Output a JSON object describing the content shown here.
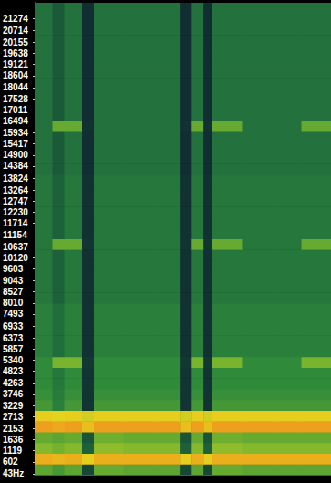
{
  "chart_data": {
    "type": "heatmap",
    "tick_labels": "y",
    "grid": false,
    "xlim": [
      0,
      100
    ],
    "ylim": [
      0,
      22000
    ],
    "yticks": [
      21274,
      20714,
      20155,
      19638,
      19121,
      18604,
      18044,
      17528,
      17011,
      16494,
      15934,
      15417,
      14900,
      14384,
      13824,
      13264,
      12747,
      12230,
      11714,
      11154,
      10637,
      10120,
      9603,
      9043,
      8527,
      8010,
      7493,
      6933,
      6373,
      5857,
      5340,
      4823,
      4263,
      3746,
      3229,
      2713,
      2153,
      1636,
      1119,
      602,
      {
        "value": 43,
        "label": "43Hz"
      }
    ],
    "color_range": [
      0,
      100
    ],
    "x_bins": [
      0,
      6,
      10,
      16,
      20,
      30,
      40,
      49,
      53,
      57,
      60,
      70,
      80,
      90,
      100
    ],
    "y_bins": [
      0,
      500,
      1000,
      1500,
      2000,
      2500,
      3000,
      3500,
      4000,
      4500,
      5000,
      5500,
      6000,
      6500,
      7000,
      7500,
      8000,
      8500,
      9000,
      9500,
      10000,
      10500,
      11000,
      11500,
      12000,
      12500,
      13000,
      13500,
      14000,
      14500,
      15000,
      15500,
      16000,
      16500,
      17000,
      17500,
      18000,
      18500,
      19000,
      19500,
      20000,
      20500,
      21000,
      21500,
      22000
    ],
    "cells": [
      [
        60,
        55,
        60,
        20,
        62,
        60,
        60,
        20,
        60,
        20,
        62,
        60,
        60,
        60
      ],
      [
        92,
        90,
        92,
        85,
        92,
        92,
        92,
        85,
        92,
        85,
        92,
        92,
        92,
        92
      ],
      [
        68,
        65,
        68,
        30,
        70,
        68,
        68,
        30,
        68,
        30,
        70,
        68,
        68,
        68
      ],
      [
        62,
        60,
        62,
        25,
        64,
        62,
        62,
        25,
        62,
        25,
        64,
        62,
        62,
        62
      ],
      [
        95,
        93,
        95,
        88,
        95,
        95,
        95,
        88,
        95,
        88,
        95,
        95,
        95,
        95
      ],
      [
        85,
        83,
        85,
        80,
        85,
        85,
        85,
        80,
        85,
        80,
        85,
        85,
        85,
        85
      ],
      [
        55,
        45,
        55,
        10,
        55,
        55,
        55,
        10,
        55,
        10,
        55,
        55,
        55,
        55
      ],
      [
        52,
        42,
        52,
        10,
        52,
        52,
        52,
        10,
        52,
        10,
        52,
        52,
        52,
        52
      ],
      [
        50,
        40,
        50,
        10,
        50,
        50,
        50,
        10,
        50,
        10,
        50,
        50,
        50,
        50
      ],
      [
        50,
        40,
        50,
        10,
        50,
        50,
        50,
        10,
        50,
        10,
        50,
        50,
        50,
        50
      ],
      [
        50,
        66,
        66,
        12,
        50,
        50,
        50,
        12,
        66,
        12,
        66,
        50,
        50,
        66
      ],
      [
        45,
        35,
        45,
        8,
        45,
        45,
        45,
        8,
        45,
        8,
        45,
        45,
        45,
        45
      ],
      [
        45,
        35,
        45,
        8,
        45,
        45,
        45,
        8,
        45,
        8,
        45,
        45,
        45,
        45
      ],
      [
        45,
        35,
        45,
        8,
        45,
        45,
        45,
        8,
        45,
        8,
        45,
        45,
        45,
        45
      ],
      [
        45,
        35,
        45,
        8,
        45,
        45,
        45,
        8,
        45,
        8,
        45,
        45,
        45,
        45
      ],
      [
        45,
        35,
        45,
        8,
        45,
        45,
        45,
        8,
        45,
        8,
        45,
        45,
        45,
        45
      ],
      [
        40,
        30,
        40,
        8,
        40,
        40,
        40,
        8,
        40,
        8,
        40,
        40,
        40,
        40
      ],
      [
        40,
        30,
        40,
        8,
        40,
        40,
        40,
        8,
        40,
        8,
        40,
        40,
        40,
        40
      ],
      [
        40,
        30,
        40,
        8,
        40,
        40,
        40,
        8,
        40,
        8,
        40,
        40,
        40,
        40
      ],
      [
        40,
        30,
        40,
        8,
        40,
        40,
        40,
        8,
        40,
        8,
        40,
        40,
        40,
        40
      ],
      [
        40,
        30,
        40,
        8,
        40,
        40,
        40,
        8,
        40,
        8,
        40,
        40,
        40,
        40
      ],
      [
        40,
        62,
        62,
        10,
        40,
        40,
        40,
        10,
        62,
        10,
        62,
        40,
        40,
        62
      ],
      [
        40,
        30,
        40,
        8,
        40,
        40,
        40,
        8,
        40,
        8,
        40,
        40,
        40,
        40
      ],
      [
        40,
        30,
        40,
        8,
        40,
        40,
        40,
        8,
        40,
        8,
        40,
        40,
        40,
        40
      ],
      [
        40,
        30,
        40,
        8,
        40,
        40,
        40,
        8,
        40,
        8,
        40,
        40,
        40,
        40
      ],
      [
        40,
        30,
        40,
        8,
        40,
        40,
        40,
        8,
        40,
        8,
        40,
        40,
        40,
        40
      ],
      [
        40,
        30,
        40,
        8,
        40,
        40,
        40,
        8,
        40,
        8,
        40,
        40,
        40,
        40
      ],
      [
        40,
        30,
        40,
        8,
        40,
        40,
        40,
        8,
        40,
        8,
        40,
        40,
        40,
        40
      ],
      [
        37,
        27,
        37,
        6,
        37,
        37,
        37,
        6,
        37,
        6,
        37,
        37,
        37,
        37
      ],
      [
        37,
        27,
        37,
        6,
        37,
        37,
        37,
        6,
        37,
        6,
        37,
        37,
        37,
        37
      ],
      [
        37,
        27,
        37,
        6,
        37,
        37,
        37,
        6,
        37,
        6,
        37,
        37,
        37,
        37
      ],
      [
        37,
        27,
        37,
        6,
        37,
        37,
        37,
        6,
        37,
        6,
        37,
        37,
        37,
        37
      ],
      [
        37,
        62,
        62,
        8,
        37,
        37,
        37,
        8,
        62,
        8,
        62,
        37,
        37,
        62
      ],
      [
        37,
        27,
        37,
        6,
        37,
        37,
        37,
        6,
        37,
        6,
        37,
        37,
        37,
        37
      ],
      [
        37,
        27,
        37,
        6,
        37,
        37,
        37,
        6,
        37,
        6,
        37,
        37,
        37,
        37
      ],
      [
        37,
        27,
        37,
        6,
        37,
        37,
        37,
        6,
        37,
        6,
        37,
        37,
        37,
        37
      ],
      [
        37,
        27,
        37,
        6,
        37,
        37,
        37,
        6,
        37,
        6,
        37,
        37,
        37,
        37
      ],
      [
        37,
        27,
        37,
        6,
        37,
        37,
        37,
        6,
        37,
        6,
        37,
        37,
        37,
        37
      ],
      [
        37,
        27,
        37,
        6,
        37,
        37,
        37,
        6,
        37,
        6,
        37,
        37,
        37,
        37
      ],
      [
        37,
        27,
        37,
        6,
        37,
        37,
        37,
        6,
        37,
        6,
        37,
        37,
        37,
        37
      ],
      [
        37,
        27,
        37,
        6,
        37,
        37,
        37,
        6,
        37,
        6,
        37,
        37,
        37,
        37
      ],
      [
        37,
        27,
        37,
        6,
        37,
        37,
        37,
        6,
        37,
        6,
        37,
        37,
        37,
        37
      ],
      [
        37,
        27,
        37,
        6,
        37,
        37,
        37,
        6,
        37,
        6,
        37,
        37,
        37,
        37
      ],
      [
        37,
        27,
        37,
        6,
        37,
        37,
        37,
        6,
        37,
        6,
        37,
        37,
        37,
        37
      ]
    ]
  }
}
